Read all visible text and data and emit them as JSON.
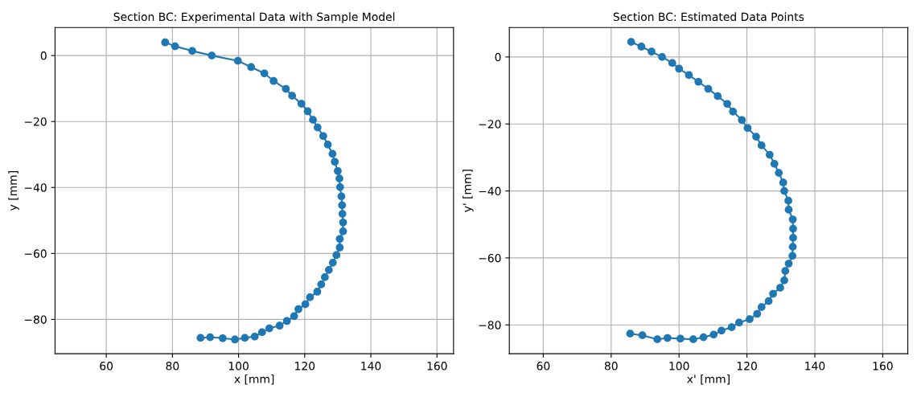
{
  "chart_data": [
    {
      "type": "line",
      "title": "Section BC: Experimental Data with Sample Model",
      "xlabel": "x [mm]",
      "ylabel": "y [mm]",
      "marker": "circle",
      "line_style": "solid",
      "grid": true,
      "legend": false,
      "xlim": [
        44.5,
        165
      ],
      "ylim": [
        -90.4,
        8.5
      ],
      "xticks": [
        60,
        80,
        100,
        120,
        140,
        160
      ],
      "yticks": [
        {
          "value": -80,
          "label": "−80"
        },
        {
          "value": -60,
          "label": "−60"
        },
        {
          "value": -40,
          "label": "−40"
        },
        {
          "value": -20,
          "label": "−20"
        },
        0
      ],
      "series": [
        {
          "color": "#1f77b4",
          "x": [
            77.8,
            80.8,
            86,
            91.9,
            99.8,
            103.8,
            107.8,
            110.6,
            114.3,
            116.2,
            119,
            120.9,
            122.5,
            123.9,
            125.6,
            127,
            128.4,
            129.1,
            130,
            130.5,
            130.7,
            131.1,
            131.3,
            131.4,
            131.6,
            131.6,
            130.6,
            130.6,
            129.6,
            128.5,
            127.3,
            126.1,
            125,
            123.8,
            121.6,
            120.2,
            118.1,
            116.8,
            114.6,
            112.4,
            109.3,
            107.1,
            104.9,
            101.9,
            98.9,
            95.2,
            91.4,
            88.5
          ],
          "values": [
            4.0,
            2.8,
            1.4,
            0,
            -1.6,
            -3.5,
            -5.4,
            -7.7,
            -10.1,
            -12.2,
            -14.6,
            -16.9,
            -19.5,
            -21.8,
            -24.4,
            -27,
            -29.8,
            -32.2,
            -35,
            -37.3,
            -39.9,
            -42.7,
            -45.4,
            -48,
            -50.6,
            -53.3,
            -55.6,
            -58.2,
            -60.5,
            -62.8,
            -65,
            -67.2,
            -69.4,
            -71.6,
            -73.3,
            -75.4,
            -76.9,
            -79,
            -80.5,
            -81.9,
            -82.7,
            -83.9,
            -85.2,
            -85.6,
            -86.1,
            -85.7,
            -85.4,
            -85.6
          ]
        }
      ]
    },
    {
      "type": "line",
      "title": "Section BC: Estimated Data Points",
      "xlabel": "x' [mm]",
      "ylabel": "y' [mm]",
      "marker": "circle",
      "line_style": "solid",
      "grid": true,
      "legend": false,
      "xlim": [
        50,
        167.4
      ],
      "ylim": [
        -88.6,
        8.8
      ],
      "xticks": [
        60,
        80,
        100,
        120,
        140,
        160
      ],
      "yticks": [
        {
          "value": -80,
          "label": "−80"
        },
        {
          "value": -60,
          "label": "−60"
        },
        {
          "value": -40,
          "label": "−40"
        },
        {
          "value": -20,
          "label": "−20"
        },
        0
      ],
      "series": [
        {
          "color": "#1f77b4",
          "x": [
            85.9,
            88.9,
            91.9,
            95.0,
            98.0,
            100,
            102.9,
            105.7,
            108.6,
            111.4,
            114.2,
            115.9,
            118.5,
            120.2,
            122.7,
            124.3,
            126.7,
            128.1,
            129.4,
            130.7,
            131.0,
            132.2,
            132.3,
            133.5,
            133.6,
            133.6,
            133.5,
            133.4,
            132.3,
            131.3,
            131.0,
            129.8,
            127.7,
            126.4,
            124.3,
            123.0,
            120.8,
            117.7,
            115.5,
            112.5,
            110.2,
            107.2,
            104.2,
            100.4,
            96.6,
            93.6,
            89.2,
            85.6
          ],
          "values": [
            4.5,
            3.1,
            1.6,
            0,
            -1.8,
            -3.5,
            -5.4,
            -7.4,
            -9.5,
            -11.7,
            -14.0,
            -16.3,
            -18.8,
            -21.2,
            -23.8,
            -26.4,
            -29.2,
            -31.9,
            -34.6,
            -37.5,
            -40,
            -42.9,
            -45.6,
            -48.5,
            -51.3,
            -54.0,
            -56.7,
            -59.4,
            -61.7,
            -63.9,
            -66.7,
            -68.9,
            -70.7,
            -72.9,
            -74.7,
            -76.7,
            -78.3,
            -79.3,
            -80.7,
            -81.7,
            -82.9,
            -83.7,
            -84.3,
            -84.1,
            -83.9,
            -84.3,
            -83.1,
            -82.6
          ]
        }
      ]
    }
  ]
}
